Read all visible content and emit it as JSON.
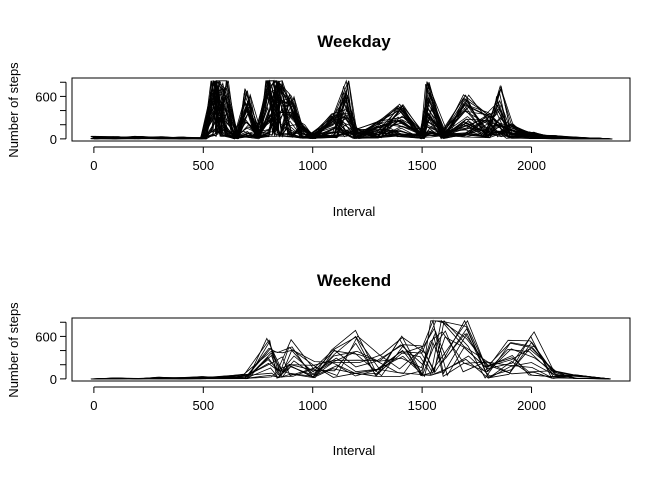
{
  "chart_data": [
    {
      "type": "line",
      "title": "Weekday",
      "xlabel": "Interval",
      "ylabel": "Number of steps",
      "xlim": [
        -100,
        2450
      ],
      "ylim": [
        -30,
        860
      ],
      "xticks": [
        0,
        500,
        1000,
        1500,
        2000
      ],
      "yticks": [
        0,
        600
      ],
      "yticks_minor": [
        200,
        400,
        800
      ],
      "grid": false,
      "legend": "none",
      "color": "#000000",
      "series_count": 45,
      "series": [
        {
          "x": [
            0,
            100,
            200,
            300,
            400,
            500,
            550,
            570,
            600,
            650,
            700,
            750,
            800,
            830,
            850,
            900,
            950,
            1000,
            1100,
            1150,
            1200,
            1300,
            1400,
            1500,
            1530,
            1600,
            1700,
            1800,
            1850,
            1900,
            2000,
            2100,
            2200,
            2300,
            2355
          ],
          "values": [
            30,
            25,
            30,
            28,
            20,
            15,
            780,
            800,
            760,
            40,
            600,
            100,
            780,
            810,
            700,
            500,
            200,
            60,
            300,
            700,
            120,
            200,
            400,
            80,
            650,
            100,
            500,
            300,
            600,
            200,
            80,
            40,
            20,
            10,
            0
          ]
        }
      ]
    },
    {
      "type": "line",
      "title": "Weekend",
      "xlabel": "Interval",
      "ylabel": "Number of steps",
      "xlim": [
        -100,
        2450
      ],
      "ylim": [
        -30,
        860
      ],
      "xticks": [
        0,
        500,
        1000,
        1500,
        2000
      ],
      "yticks": [
        0,
        600
      ],
      "yticks_minor": [
        200,
        400,
        800
      ],
      "grid": false,
      "legend": "none",
      "color": "#000000",
      "series_count": 16,
      "series": [
        {
          "x": [
            0,
            100,
            200,
            300,
            400,
            500,
            600,
            700,
            800,
            850,
            900,
            1000,
            1100,
            1200,
            1300,
            1400,
            1500,
            1550,
            1600,
            1700,
            1800,
            1900,
            2000,
            2100,
            2200,
            2355
          ],
          "values": [
            0,
            10,
            5,
            20,
            15,
            30,
            40,
            60,
            500,
            300,
            450,
            200,
            400,
            550,
            300,
            500,
            400,
            780,
            790,
            720,
            200,
            500,
            540,
            100,
            60,
            0
          ]
        }
      ]
    }
  ]
}
